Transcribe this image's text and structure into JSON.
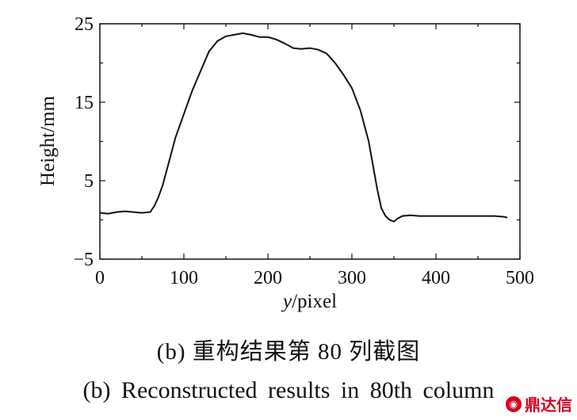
{
  "chart_data": {
    "type": "line",
    "xlabel_italic": "y",
    "xlabel_rest": "/pixel",
    "ylabel": "Height/mm",
    "xlim": [
      0,
      500
    ],
    "ylim": [
      -5,
      25
    ],
    "x_ticks": [
      "0",
      "100",
      "200",
      "300",
      "400",
      "500"
    ],
    "y_ticks": [
      "25",
      "15",
      "5",
      "−5"
    ],
    "y_tick_values": [
      25,
      15,
      5,
      -5
    ],
    "x_tick_values": [
      0,
      100,
      200,
      300,
      400,
      500
    ],
    "grid": false,
    "series": [
      {
        "x": [
          0,
          10,
          20,
          30,
          40,
          50,
          60,
          65,
          70,
          75,
          80,
          90,
          100,
          110,
          120,
          130,
          140,
          150,
          160,
          170,
          175,
          180,
          190,
          200,
          210,
          220,
          230,
          240,
          250,
          260,
          270,
          280,
          290,
          300,
          310,
          320,
          325,
          330,
          335,
          340,
          345,
          350,
          355,
          360,
          370,
          380,
          400,
          420,
          440,
          460,
          470,
          480,
          485
        ],
        "y": [
          0.9,
          0.8,
          1.0,
          1.1,
          1.0,
          0.9,
          1.0,
          1.8,
          3.0,
          4.5,
          6.5,
          10.5,
          13.5,
          16.5,
          19.0,
          21.5,
          22.8,
          23.4,
          23.6,
          23.8,
          23.7,
          23.6,
          23.3,
          23.3,
          23.0,
          22.5,
          21.9,
          21.8,
          21.9,
          21.7,
          21.2,
          20.0,
          18.5,
          16.8,
          14.0,
          10.0,
          7.0,
          4.0,
          1.5,
          0.5,
          0.0,
          -0.2,
          0.2,
          0.5,
          0.6,
          0.5,
          0.5,
          0.5,
          0.5,
          0.5,
          0.5,
          0.4,
          0.3
        ]
      }
    ]
  },
  "captions": {
    "cn": "(b) 重构结果第 80 列截图",
    "en": "(b) Reconstructed results in 80th column"
  },
  "watermark": {
    "text": "鼎达信",
    "icon": "logo-icon"
  }
}
